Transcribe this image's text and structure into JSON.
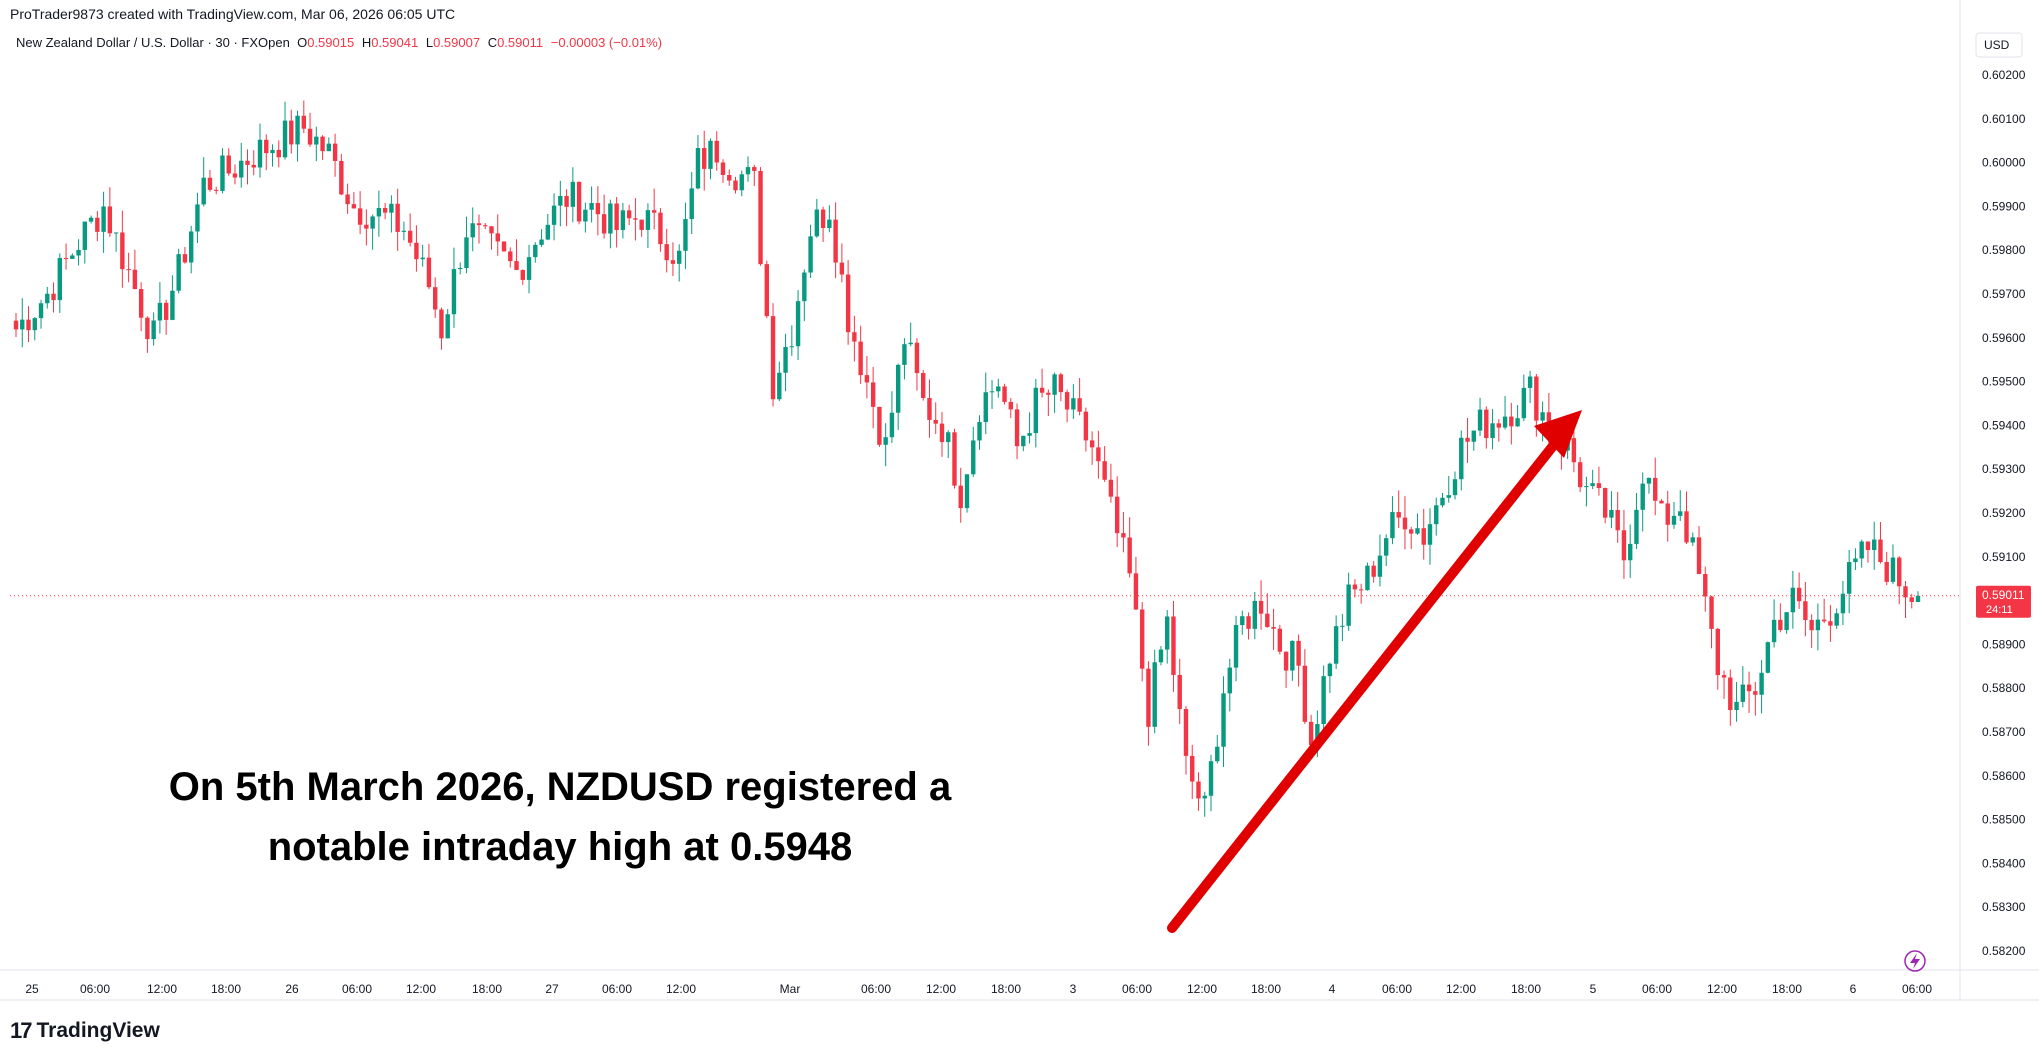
{
  "credit": "ProTrader9873 created with TradingView.com, Mar 06, 2026 06:05 UTC",
  "legend": {
    "symbol": "New Zealand Dollar / U.S. Dollar · 30 · FXOpen",
    "o_label": "O",
    "o": "0.59015",
    "h_label": "H",
    "h": "0.59041",
    "l_label": "L",
    "l": "0.59007",
    "c_label": "C",
    "c": "0.59011",
    "change": "−0.00003 (−0.01%)"
  },
  "currency": "USD",
  "price_tag": {
    "price": "0.59011",
    "countdown": "24:11"
  },
  "annotation": {
    "line1": "On 5th March 2026, NZDUSD registered a",
    "line2": "notable intraday high at 0.5948"
  },
  "brand": "TradingView",
  "colors": {
    "up": "#089981",
    "down": "#f23645",
    "arrow": "#e00000",
    "accent": "#2962ff"
  },
  "chart_data": {
    "type": "candlestick",
    "x_tick_labels": [
      "25",
      "06:00",
      "12:00",
      "18:00",
      "26",
      "06:00",
      "12:00",
      "18:00",
      "27",
      "06:00",
      "12:00",
      "Mar",
      "06:00",
      "12:00",
      "18:00",
      "3",
      "06:00",
      "12:00",
      "18:00",
      "4",
      "06:00",
      "12:00",
      "18:00",
      "5",
      "06:00",
      "12:00",
      "18:00",
      "6",
      "06:00"
    ],
    "y_ticks": [
      0.582,
      0.583,
      0.584,
      0.585,
      0.586,
      0.587,
      0.588,
      0.589,
      0.591,
      0.592,
      0.593,
      0.594,
      0.595,
      0.596,
      0.597,
      0.598,
      0.599,
      0.6,
      0.601,
      0.602
    ],
    "y_tick_labels": [
      "0.58200",
      "0.58300",
      "0.58400",
      "0.58500",
      "0.58600",
      "0.58700",
      "0.58800",
      "0.58900",
      "0.59100",
      "0.59200",
      "0.59300",
      "0.59400",
      "0.59500",
      "0.59600",
      "0.59700",
      "0.59800",
      "0.59900",
      "0.60000",
      "0.60100",
      "0.60200"
    ],
    "ylim": [
      0.5815,
      0.6025
    ],
    "last_price": 0.59011,
    "notable_high": 0.5948,
    "anchors": [
      [
        0,
        0.5962
      ],
      [
        5,
        0.597
      ],
      [
        10,
        0.5982
      ],
      [
        14,
        0.599
      ],
      [
        18,
        0.5975
      ],
      [
        22,
        0.596
      ],
      [
        26,
        0.5975
      ],
      [
        30,
        0.5995
      ],
      [
        34,
        0.5998
      ],
      [
        38,
        0.6002
      ],
      [
        42,
        0.6005
      ],
      [
        46,
        0.6008
      ],
      [
        50,
        0.6002
      ],
      [
        54,
        0.599
      ],
      [
        58,
        0.5988
      ],
      [
        62,
        0.5985
      ],
      [
        66,
        0.5972
      ],
      [
        68,
        0.5962
      ],
      [
        72,
        0.5985
      ],
      [
        76,
        0.598
      ],
      [
        80,
        0.5975
      ],
      [
        84,
        0.5985
      ],
      [
        88,
        0.5992
      ],
      [
        92,
        0.599
      ],
      [
        96,
        0.5985
      ],
      [
        100,
        0.5988
      ],
      [
        104,
        0.5982
      ],
      [
        106,
        0.5978
      ],
      [
        109,
        0.6
      ],
      [
        112,
        0.6003
      ],
      [
        115,
        0.5998
      ],
      [
        118,
        0.5995
      ],
      [
        121,
        0.595
      ],
      [
        124,
        0.5962
      ],
      [
        127,
        0.5985
      ],
      [
        130,
        0.599
      ],
      [
        133,
        0.5965
      ],
      [
        136,
        0.595
      ],
      [
        139,
        0.5935
      ],
      [
        142,
        0.596
      ],
      [
        145,
        0.5945
      ],
      [
        148,
        0.594
      ],
      [
        151,
        0.5925
      ],
      [
        154,
        0.5945
      ],
      [
        157,
        0.595
      ],
      [
        160,
        0.5935
      ],
      [
        163,
        0.5945
      ],
      [
        166,
        0.5948
      ],
      [
        169,
        0.5942
      ],
      [
        172,
        0.5935
      ],
      [
        175,
        0.592
      ],
      [
        178,
        0.5905
      ],
      [
        181,
        0.5875
      ],
      [
        184,
        0.5895
      ],
      [
        187,
        0.5862
      ],
      [
        190,
        0.5852
      ],
      [
        193,
        0.588
      ],
      [
        196,
        0.5895
      ],
      [
        199,
        0.59
      ],
      [
        202,
        0.589
      ],
      [
        205,
        0.5885
      ],
      [
        207,
        0.5868
      ],
      [
        210,
        0.5888
      ],
      [
        213,
        0.59
      ],
      [
        216,
        0.5905
      ],
      [
        219,
        0.5915
      ],
      [
        222,
        0.592
      ],
      [
        225,
        0.5915
      ],
      [
        228,
        0.5925
      ],
      [
        231,
        0.5935
      ],
      [
        234,
        0.594
      ],
      [
        237,
        0.5942
      ],
      [
        240,
        0.5945
      ],
      [
        242,
        0.5948
      ],
      [
        245,
        0.594
      ],
      [
        248,
        0.5935
      ],
      [
        251,
        0.5925
      ],
      [
        254,
        0.592
      ],
      [
        257,
        0.591
      ],
      [
        260,
        0.593
      ],
      [
        263,
        0.5918
      ],
      [
        266,
        0.5922
      ],
      [
        269,
        0.5905
      ],
      [
        272,
        0.5885
      ],
      [
        275,
        0.5875
      ],
      [
        278,
        0.588
      ],
      [
        281,
        0.5895
      ],
      [
        284,
        0.59
      ],
      [
        287,
        0.5893
      ],
      [
        290,
        0.5898
      ],
      [
        293,
        0.5905
      ],
      [
        296,
        0.5912
      ],
      [
        299,
        0.5908
      ],
      [
        302,
        0.5903
      ],
      [
        304,
        0.5901
      ]
    ]
  }
}
